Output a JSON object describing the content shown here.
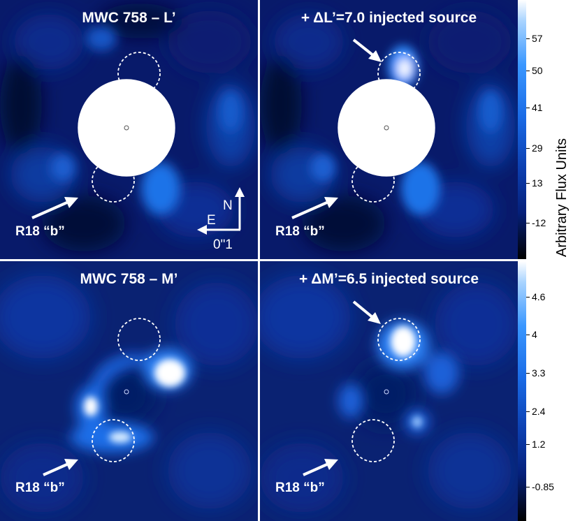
{
  "panels": {
    "tl": {
      "title": "MWC 758 – L’",
      "r18_label": "R18 “b”"
    },
    "tr": {
      "title": "+ ΔL’=7.0 injected source",
      "r18_label": "R18 “b”"
    },
    "bl": {
      "title": "MWC 758 – M’",
      "r18_label": "R18 “b”"
    },
    "br": {
      "title": "+ ΔM’=6.5 injected source",
      "r18_label": "R18 “b”"
    }
  },
  "compass": {
    "north": "N",
    "east": "E",
    "scale": "0ʺ1"
  },
  "colorbar": {
    "label": "Arbitrary Flux Units",
    "top_ticks": [
      "57",
      "50",
      "41",
      "29",
      "13",
      "-12"
    ],
    "bottom_ticks": [
      "4.6",
      "4",
      "3.3",
      "2.4",
      "1.2",
      "-0.85"
    ]
  },
  "colors": {
    "background": "#030a3a",
    "mid": "#0b3fb5",
    "bright": "#2f8fff",
    "peak": "#ffffff"
  }
}
